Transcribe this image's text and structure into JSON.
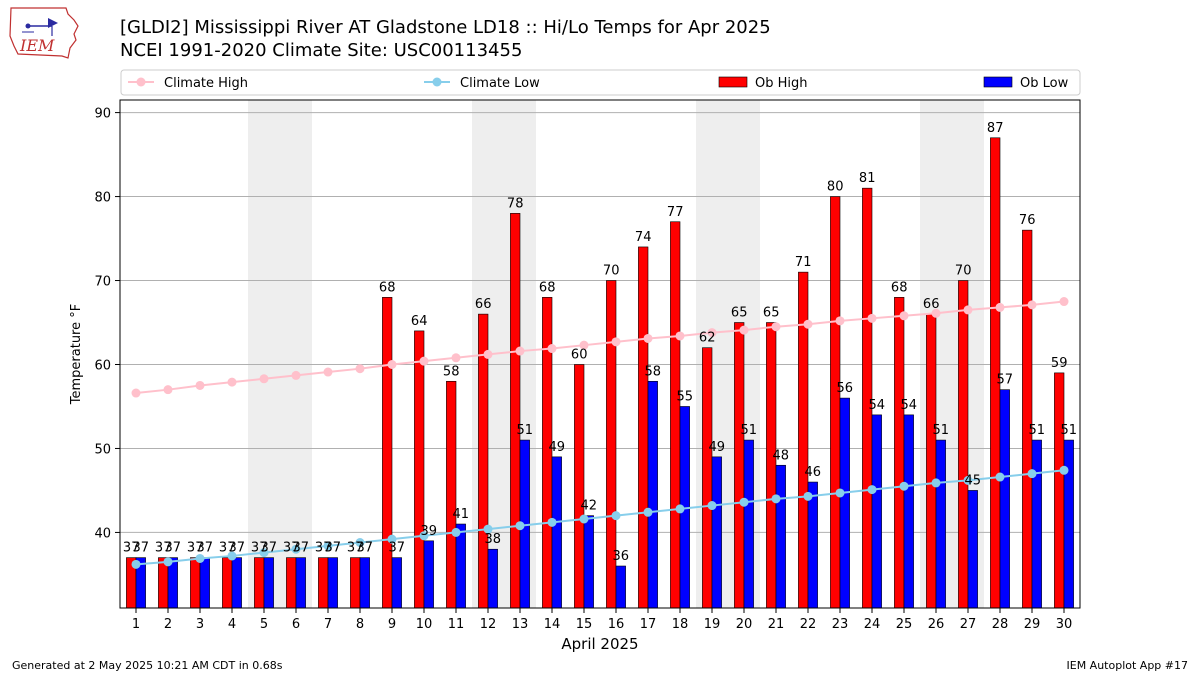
{
  "header": {
    "title_line1": "[GLDI2] Mississippi River  AT Gladstone LD18 :: Hi/Lo Temps for Apr 2025",
    "title_line2": "NCEI 1991-2020 Climate Site: USC00113455",
    "logo_text": "IEM"
  },
  "footer": {
    "generated": "Generated at 2 May 2025 10:21 AM CDT in 0.68s",
    "app": "IEM Autoplot App #17"
  },
  "colors": {
    "ob_high": "#ff0000",
    "ob_low": "#0000ff",
    "climate_high": "#ffc0cb",
    "climate_low": "#87ceeb",
    "weekend_band": "#eeeeee"
  },
  "chart_data": {
    "type": "bar",
    "xlabel": "April 2025",
    "ylabel": "Temperature °F",
    "ylim": [
      31,
      91.5
    ],
    "xlim": [
      0.5,
      30.5
    ],
    "yticks": [
      40,
      50,
      60,
      70,
      80,
      90
    ],
    "grid": "y",
    "legend_position": "top",
    "weekend_bands": [
      [
        5,
        6
      ],
      [
        12,
        13
      ],
      [
        19,
        20
      ],
      [
        26,
        27
      ]
    ],
    "categories": [
      "1",
      "2",
      "3",
      "4",
      "5",
      "6",
      "7",
      "8",
      "9",
      "10",
      "11",
      "12",
      "13",
      "14",
      "15",
      "16",
      "17",
      "18",
      "19",
      "20",
      "21",
      "22",
      "23",
      "24",
      "25",
      "26",
      "27",
      "28",
      "29",
      "30"
    ],
    "series": [
      {
        "name": "Climate High",
        "kind": "line",
        "values": [
          56.6,
          57.0,
          57.5,
          57.9,
          58.3,
          58.7,
          59.1,
          59.5,
          60.0,
          60.4,
          60.8,
          61.2,
          61.6,
          61.9,
          62.3,
          62.7,
          63.1,
          63.4,
          63.8,
          64.1,
          64.5,
          64.8,
          65.2,
          65.5,
          65.8,
          66.1,
          66.5,
          66.8,
          67.1,
          67.5
        ]
      },
      {
        "name": "Climate Low",
        "kind": "line",
        "values": [
          36.2,
          36.5,
          36.9,
          37.2,
          37.6,
          38.0,
          38.4,
          38.8,
          39.2,
          39.6,
          40.0,
          40.4,
          40.8,
          41.2,
          41.6,
          42.0,
          42.4,
          42.8,
          43.2,
          43.6,
          44.0,
          44.3,
          44.7,
          45.1,
          45.5,
          45.9,
          46.2,
          46.6,
          47.0,
          47.4
        ]
      },
      {
        "name": "Ob High",
        "kind": "bar",
        "values": [
          37,
          37,
          37,
          37,
          37,
          37,
          37,
          37,
          68,
          64,
          58,
          66,
          78,
          68,
          60,
          70,
          74,
          77,
          62,
          65,
          65,
          71,
          80,
          81,
          68,
          66,
          70,
          87,
          76,
          59
        ],
        "labels": [
          "37",
          "37",
          "37",
          "37",
          "37",
          "37",
          "37",
          "37",
          "68",
          "64",
          "58",
          "66",
          "78",
          "68",
          "60",
          "70",
          "74",
          "77",
          "62",
          "65",
          "65",
          "71",
          "80",
          "81",
          "68",
          "66",
          "70",
          "87",
          "76",
          "59"
        ]
      },
      {
        "name": "Ob Low",
        "kind": "bar",
        "values": [
          37,
          37,
          37,
          37,
          37,
          37,
          37,
          37,
          37,
          39,
          41,
          38,
          51,
          49,
          42,
          36,
          58,
          55,
          49,
          51,
          48,
          46,
          56,
          54,
          54,
          51,
          45,
          57,
          51,
          51
        ],
        "labels": [
          "37",
          "37",
          "37",
          "37",
          "37",
          "37",
          "37",
          "37",
          "37",
          "39",
          "41",
          "38",
          "51",
          "49",
          "42",
          "36",
          "58",
          "55",
          "49",
          "51",
          "48",
          "46",
          "56",
          "54",
          "54",
          "51",
          "45",
          "57",
          "51",
          "51"
        ]
      }
    ]
  }
}
